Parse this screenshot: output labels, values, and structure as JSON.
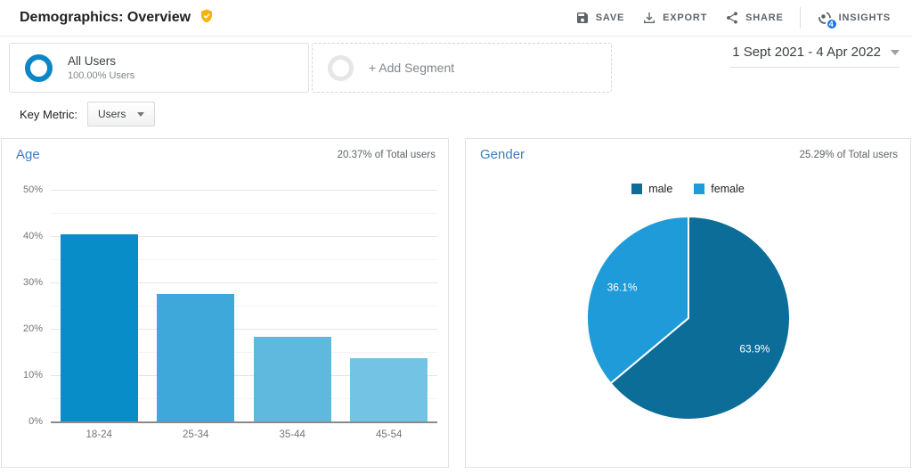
{
  "header": {
    "title": "Demographics: Overview",
    "badge_icon": "verified-shield",
    "badge_color": "#f4b400",
    "actions": [
      {
        "label": "SAVE",
        "icon": "save-icon"
      },
      {
        "label": "EXPORT",
        "icon": "download-icon"
      },
      {
        "label": "SHARE",
        "icon": "share-icon"
      },
      {
        "label": "INSIGHTS",
        "icon": "insights-icon",
        "badge_count": "4",
        "badge_color": "#1a73e8"
      }
    ]
  },
  "segments": {
    "all_users": {
      "title": "All Users",
      "subtitle": "100.00% Users",
      "ring_color": "#0b86c6"
    },
    "add_segment_label": "+ Add Segment",
    "date_range": "1 Sept 2021 - 4 Apr 2022"
  },
  "key_metric": {
    "label": "Key Metric:",
    "selected": "Users"
  },
  "chart_data": [
    {
      "type": "bar",
      "title": "Age",
      "subtitle": "20.37% of Total users",
      "categories": [
        "18-24",
        "25-34",
        "35-44",
        "45-54"
      ],
      "values": [
        40.3,
        27.5,
        18.2,
        13.7
      ],
      "bar_colors": [
        "#098dc8",
        "#3ea8da",
        "#5fb9df",
        "#73c4e4"
      ],
      "ylim": [
        0,
        50
      ],
      "ytick_step": 10,
      "ytick_suffix": "%",
      "grid": true,
      "xlabel": "",
      "ylabel": ""
    },
    {
      "type": "pie",
      "title": "Gender",
      "subtitle": "25.29% of Total users",
      "slices": [
        {
          "label": "male",
          "value": 63.9,
          "display": "63.9%",
          "color": "#0c6d98"
        },
        {
          "label": "female",
          "value": 36.1,
          "display": "36.1%",
          "color": "#1e9bd8"
        }
      ],
      "legend_position": "top",
      "start_angle_deg": 0,
      "direction": "clockwise"
    }
  ]
}
